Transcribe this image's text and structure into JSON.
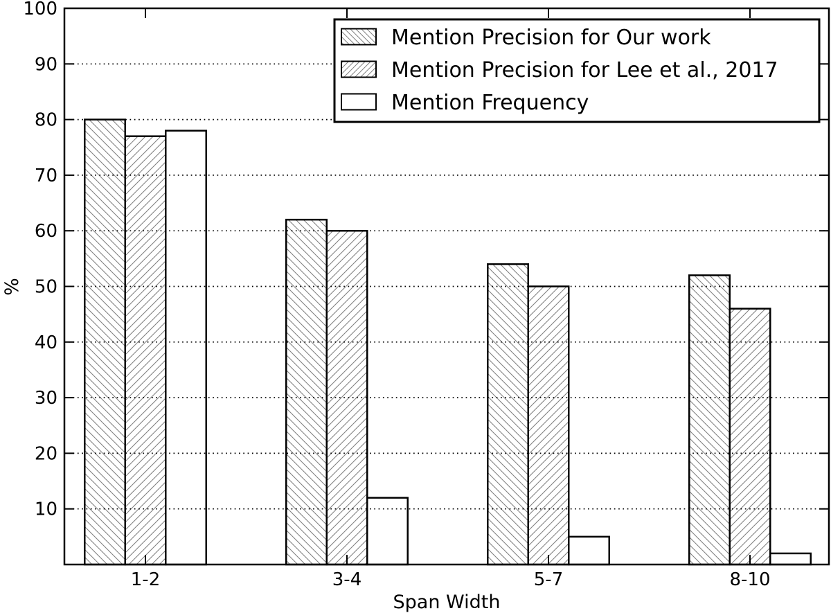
{
  "chart_data": {
    "type": "bar",
    "title": "",
    "xlabel": "Span Width",
    "ylabel": "%",
    "categories": [
      "1-2",
      "3-4",
      "5-7",
      "8-10"
    ],
    "series": [
      {
        "name": "Mention Precision for Our work",
        "hatch": "backslash",
        "values": [
          80,
          62,
          54,
          52
        ]
      },
      {
        "name": "Mention Precision for Lee et al., 2017",
        "hatch": "slash",
        "values": [
          77,
          60,
          50,
          46
        ]
      },
      {
        "name": "Mention Frequency",
        "hatch": "none",
        "values": [
          78,
          12,
          5,
          2
        ]
      }
    ],
    "ylim": [
      0,
      100
    ],
    "yticks": [
      10,
      20,
      30,
      40,
      50,
      60,
      70,
      80,
      90,
      100
    ],
    "grid": "horizontal-dotted-above-bars",
    "legend_position": "upper-center-right",
    "colors": {
      "background": "#ffffff",
      "bar_fill": "#ffffff",
      "bar_edge": "#000000",
      "hatch": "#818181",
      "grid": "#000000",
      "text": "#000000"
    }
  }
}
